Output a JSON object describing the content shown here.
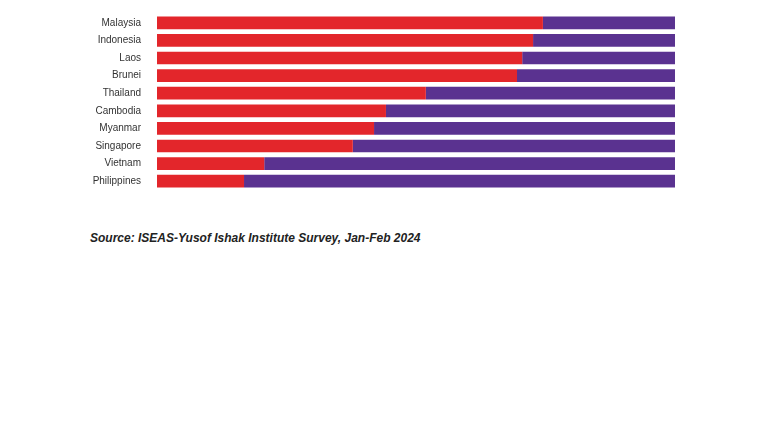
{
  "chart_data": {
    "type": "bar",
    "orientation": "horizontal",
    "stacked": true,
    "categories": [
      "Malaysia",
      "Indonesia",
      "Laos",
      "Brunei",
      "Thailand",
      "Cambodia",
      "Myanmar",
      "Singapore",
      "Vietnam",
      "Philippines"
    ],
    "series": [
      {
        "color": "#e3262b",
        "values": [
          74.5,
          72.6,
          70.5,
          69.5,
          51.9,
          44.2,
          41.9,
          37.8,
          20.7,
          16.8
        ]
      },
      {
        "color": "#5a3290",
        "values": [
          25.5,
          27.4,
          29.5,
          30.5,
          48.1,
          55.8,
          58.1,
          62.2,
          79.3,
          83.2
        ]
      }
    ],
    "xlim": [
      0,
      100
    ],
    "grid": false,
    "tick_labels": "y",
    "caption": "Source: ISEAS-Yusof Ishak Institute Survey, Jan-Feb 2024"
  }
}
